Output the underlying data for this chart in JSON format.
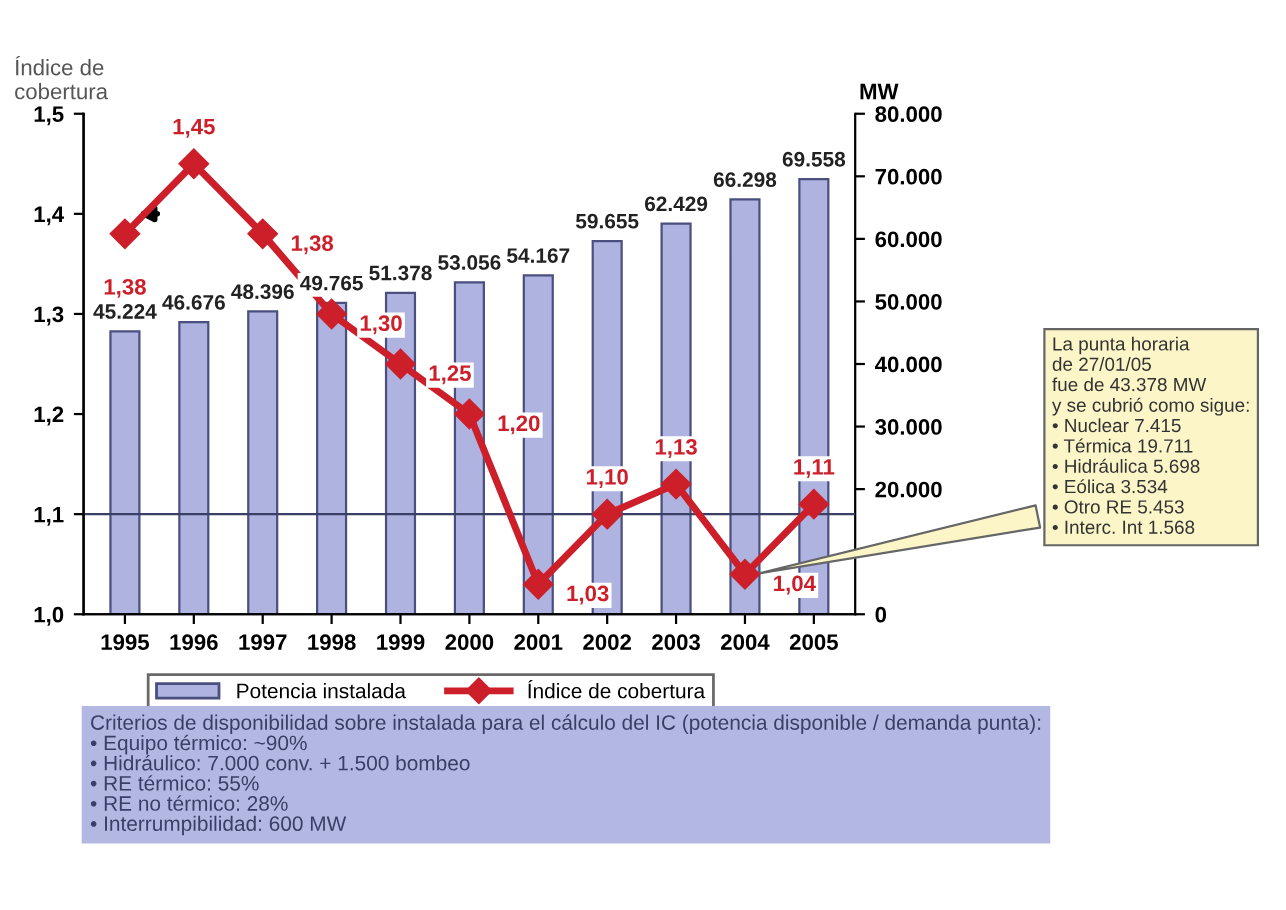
{
  "chart_data": {
    "type": "bar",
    "ylabel": "Índice de\ncobertura",
    "y2label": "MW",
    "categories": [
      "1995",
      "1996",
      "1997",
      "1998",
      "1999",
      "2000",
      "2001",
      "2002",
      "2003",
      "2004",
      "2005"
    ],
    "series": [
      {
        "name": "Potencia instalada",
        "axis": "y2",
        "color": "#aeb3e0",
        "values": [
          45224,
          46676,
          48396,
          49765,
          51378,
          53056,
          54167,
          59655,
          62429,
          66298,
          69558
        ],
        "value_labels": [
          "45.224",
          "46.676",
          "48.396",
          "49.765",
          "51.378",
          "53.056",
          "54.167",
          "59.655",
          "62.429",
          "66.298",
          "69.558"
        ]
      },
      {
        "name": "Índice de cobertura",
        "type": "line",
        "axis": "y",
        "color": "#cc1f2a",
        "marker": "diamond",
        "values": [
          1.38,
          1.45,
          1.38,
          1.3,
          1.25,
          1.2,
          1.03,
          1.1,
          1.13,
          1.04,
          1.11
        ],
        "value_labels": [
          "1,38",
          "1,45",
          "1,38",
          "1,30",
          "1,25",
          "1,20",
          "1,03",
          "1,10",
          "1,13",
          "1,04",
          "1,11"
        ]
      }
    ],
    "ylim": [
      1.0,
      1.5
    ],
    "yticks": [
      {
        "value": 1.0,
        "label": "1,0"
      },
      {
        "value": 1.1,
        "label": "1,1"
      },
      {
        "value": 1.2,
        "label": "1,2"
      },
      {
        "value": 1.3,
        "label": "1,3"
      },
      {
        "value": 1.4,
        "label": "1,4"
      },
      {
        "value": 1.5,
        "label": "1,5"
      }
    ],
    "y2lim": [
      0,
      80000
    ],
    "y2ticks": [
      0,
      {
        "value": 20000,
        "label": "20.000"
      },
      {
        "value": 30000,
        "label": "30.000"
      },
      {
        "value": 40000,
        "label": "40.000"
      },
      {
        "value": 50000,
        "label": "50.000"
      },
      {
        "value": 60000,
        "label": "60.000"
      },
      {
        "value": 70000,
        "label": "70.000"
      },
      {
        "value": 80000,
        "label": "80.000"
      }
    ],
    "ref_lines": [
      {
        "axis": "y",
        "value": 1.1,
        "color": "#3a3f66"
      }
    ],
    "legend": "bottom",
    "grid": false,
    "annotations": [
      "La punta horaria\nde 27/01/05\nfue de 43.378 MW\ny se cubrió como sigue:\n• Nuclear 7.415\n• Térmica 19.711\n• Hidráulica 5.698\n• Eólica 3.534\n• Otro RE 5.453\n• Interc. Int 1.568",
      "Criterios de disponibilidad sobre instalada para el cálculo del IC (potencia disponible / demanda punta):\n• Equipo térmico: ~90%\n• Hidráulico: 7.000 conv. + 1.500 bombeo\n• RE térmico: 55%\n• RE no térmico: 28%\n• Interrumpibilidad: 600 MW"
    ]
  }
}
